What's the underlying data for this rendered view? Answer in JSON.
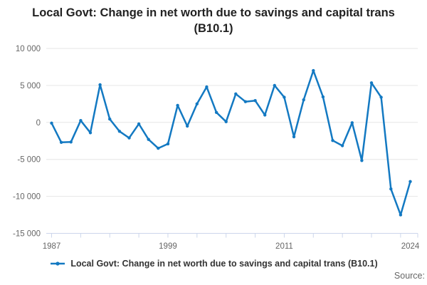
{
  "header": {
    "title": "Local Govt: Change in net worth due to savings and capital trans (B10.1)"
  },
  "legend": {
    "label": "Local Govt: Change in net worth due to savings and capital trans (B10.1)"
  },
  "footer": {
    "source_label": "Source:"
  },
  "colors": {
    "series": "#1379c2",
    "grid": "#e6e6e6",
    "axis": "#ccd6eb",
    "tick": "#ccd6eb",
    "axis_text": "#666666",
    "title_text": "#222222"
  },
  "chart_data": {
    "type": "line",
    "title": "Local Govt: Change in net worth due to savings and capital trans (B10.1)",
    "xlabel": "",
    "ylabel": "",
    "x": [
      1987,
      1988,
      1989,
      1990,
      1991,
      1992,
      1993,
      1994,
      1995,
      1996,
      1997,
      1998,
      1999,
      2000,
      2001,
      2002,
      2003,
      2004,
      2005,
      2006,
      2007,
      2008,
      2009,
      2010,
      2011,
      2012,
      2013,
      2014,
      2015,
      2016,
      2017,
      2018,
      2019,
      2020,
      2021,
      2022,
      2023,
      2024
    ],
    "series": [
      {
        "name": "Local Govt: Change in net worth due to savings and capital trans (B10.1)",
        "values": [
          -100,
          -2700,
          -2650,
          250,
          -1400,
          5100,
          450,
          -1200,
          -2100,
          -200,
          -2300,
          -3500,
          -2900,
          2300,
          -500,
          2500,
          4800,
          1350,
          100,
          3850,
          2800,
          2950,
          1000,
          5000,
          3400,
          -1950,
          3050,
          7000,
          3450,
          -2450,
          -3150,
          -50,
          -5150,
          5350,
          3400,
          -9000,
          -12500,
          -8000
        ]
      }
    ],
    "ylim": [
      -15000,
      10000
    ],
    "ytick_values": [
      10000,
      5000,
      0,
      -5000,
      -10000,
      -15000
    ],
    "ytick_labels": [
      "10 000",
      "5 000",
      "0",
      "-5 000",
      "-10 000",
      "-15 000"
    ],
    "xtick_labeled": [
      1987,
      1999,
      2011,
      2024
    ],
    "xtick_minor_step_years": 3,
    "grid": true,
    "legend_position": "bottom",
    "markers": true
  }
}
